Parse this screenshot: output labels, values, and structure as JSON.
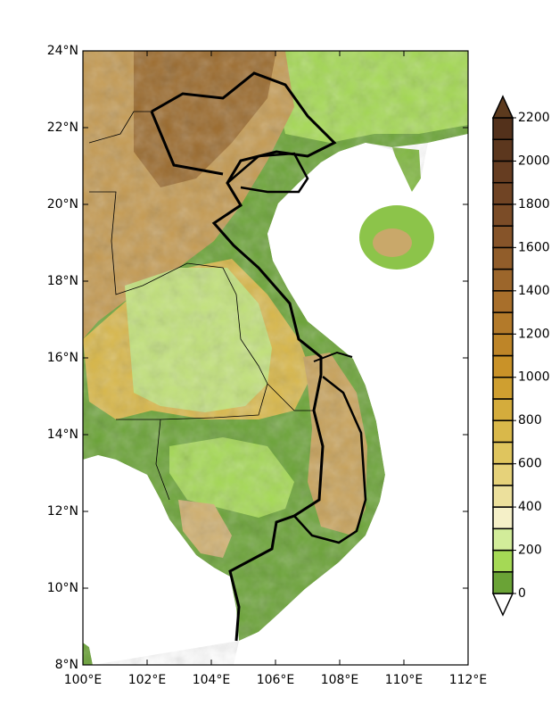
{
  "map": {
    "lonlim": [
      100,
      112
    ],
    "latlim": [
      8,
      24
    ],
    "lon_ticks": [
      {
        "value": 100,
        "label": "100°E"
      },
      {
        "value": 102,
        "label": "102°E"
      },
      {
        "value": 104,
        "label": "104°E"
      },
      {
        "value": 106,
        "label": "106°E"
      },
      {
        "value": 108,
        "label": "108°E"
      },
      {
        "value": 110,
        "label": "110°E"
      },
      {
        "value": 112,
        "label": "112°E"
      }
    ],
    "lat_ticks": [
      {
        "value": 8,
        "label": "8°N"
      },
      {
        "value": 10,
        "label": "10°N"
      },
      {
        "value": 12,
        "label": "12°N"
      },
      {
        "value": 14,
        "label": "14°N"
      },
      {
        "value": 16,
        "label": "16°N"
      },
      {
        "value": 18,
        "label": "18°N"
      },
      {
        "value": 20,
        "label": "20°N"
      },
      {
        "value": 22,
        "label": "22°N"
      },
      {
        "value": 24,
        "label": "24°N"
      }
    ],
    "colorbar": {
      "lim": [
        0,
        2200
      ],
      "ticks": [
        0,
        200,
        400,
        600,
        800,
        1000,
        1200,
        1400,
        1600,
        1800,
        2000,
        2200
      ],
      "colors": [
        "#ffffff",
        "#6aa336",
        "#a5d955",
        "#d2ec9a",
        "#f5f0c8",
        "#ece09c",
        "#e6d27a",
        "#dfc55e",
        "#d9b84a",
        "#d4ac3c",
        "#cf9f30",
        "#c99228",
        "#be8528",
        "#b37a2a",
        "#a86f2b",
        "#9c662b",
        "#915d2a",
        "#865429",
        "#7b4c27",
        "#704424",
        "#663d21",
        "#5c371e",
        "#53311b",
        "#5c3a1e"
      ]
    }
  }
}
